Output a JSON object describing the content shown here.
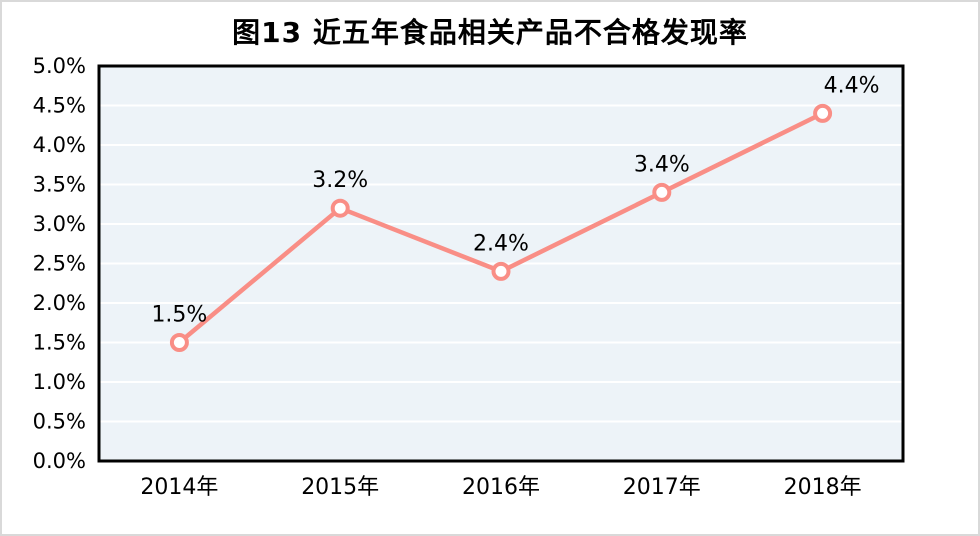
{
  "chart_data": {
    "type": "line",
    "title": "图13 近五年食品相关产品不合格发现率",
    "categories": [
      "2014年",
      "2015年",
      "2016年",
      "2017年",
      "2018年"
    ],
    "values": [
      1.5,
      3.2,
      2.4,
      3.4,
      4.4
    ],
    "point_labels": [
      "1.5%",
      "3.2%",
      "2.4%",
      "3.4%",
      "4.4%"
    ],
    "xlabel": "",
    "ylabel": "",
    "ylim": [
      0,
      5
    ],
    "y_tick_labels": [
      "0.0%",
      "0.5%",
      "1.0%",
      "1.5%",
      "2.0%",
      "2.5%",
      "3.0%",
      "3.5%",
      "4.0%",
      "4.5%",
      "5.0%"
    ],
    "grid": "horizontal",
    "legend": "none",
    "colors": {
      "line": "#F98E86",
      "marker_fill": "#FFFFFF",
      "plot_background": "#EDF3F8",
      "gridline": "#FFFFFF",
      "plot_border": "#000000",
      "text": "#000000",
      "outer_border": "#D9D9D9"
    }
  }
}
